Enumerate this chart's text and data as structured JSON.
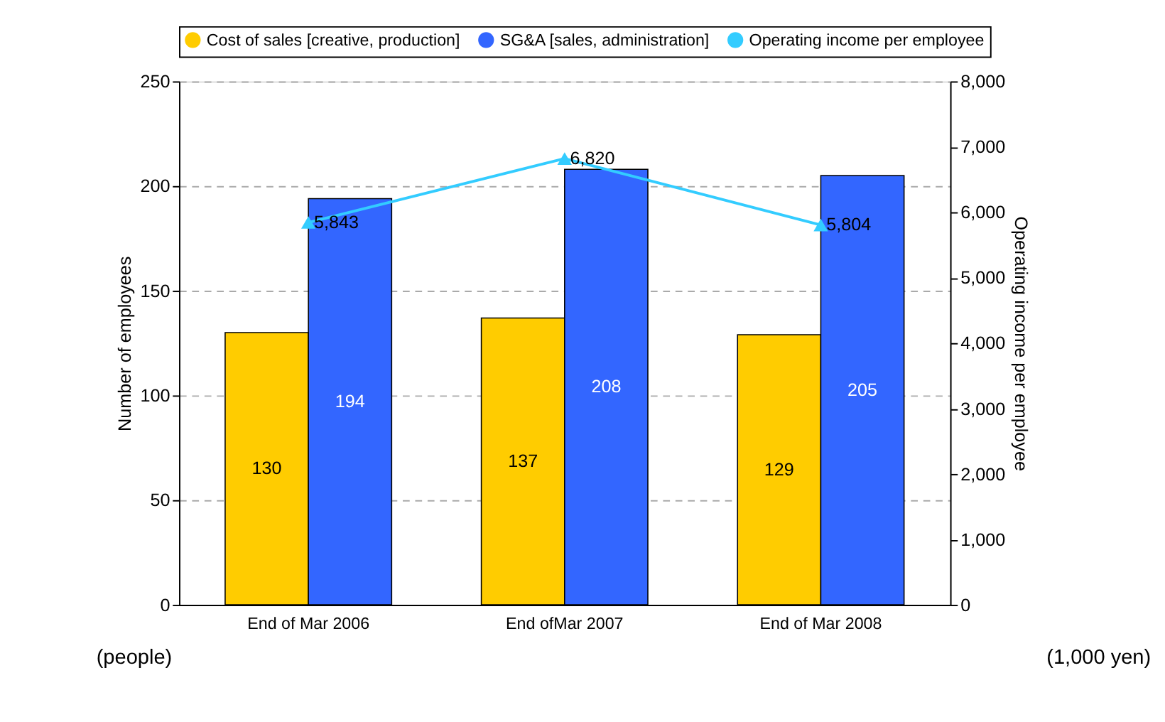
{
  "chart_data": {
    "type": "bar",
    "categories": [
      "End of Mar 2006",
      "End ofMar 2007",
      "End of Mar 2008"
    ],
    "series": [
      {
        "name": "Cost of sales [creative, production]",
        "color": "#ffcc00",
        "values": [
          130,
          137,
          129
        ]
      },
      {
        "name": "SG&A [sales, administration]",
        "color": "#3366ff",
        "values": [
          194,
          208,
          205
        ]
      },
      {
        "name": "Operating income per employee",
        "color": "#33ccff",
        "type": "line",
        "axis": "y2",
        "marker": "triangle",
        "values": [
          5843,
          6820,
          5804
        ],
        "value_labels": [
          "5,843",
          "6,820",
          "5,804"
        ]
      }
    ],
    "ylabel": "Number of employees",
    "y2label": "Operating income per employee",
    "ylim": [
      0,
      250
    ],
    "yticks": [
      0,
      50,
      100,
      150,
      200,
      250
    ],
    "y2lim": [
      0,
      8000
    ],
    "y2ticks": [
      0,
      {
        "value": 1000,
        "label": "1,000"
      },
      {
        "value": 2000,
        "label": "2,000"
      },
      {
        "value": 3000,
        "label": "3,000"
      },
      {
        "value": 4000,
        "label": "4,000"
      },
      {
        "value": 5000,
        "label": "5,000"
      },
      {
        "value": 6000,
        "label": "6,000"
      },
      {
        "value": 7000,
        "label": "7,000"
      },
      {
        "value": 8000,
        "label": "8,000"
      }
    ],
    "annotations": [
      "(people)",
      "(1,000 yen)"
    ],
    "data_labels": true,
    "grid": "y",
    "legend": "top"
  }
}
